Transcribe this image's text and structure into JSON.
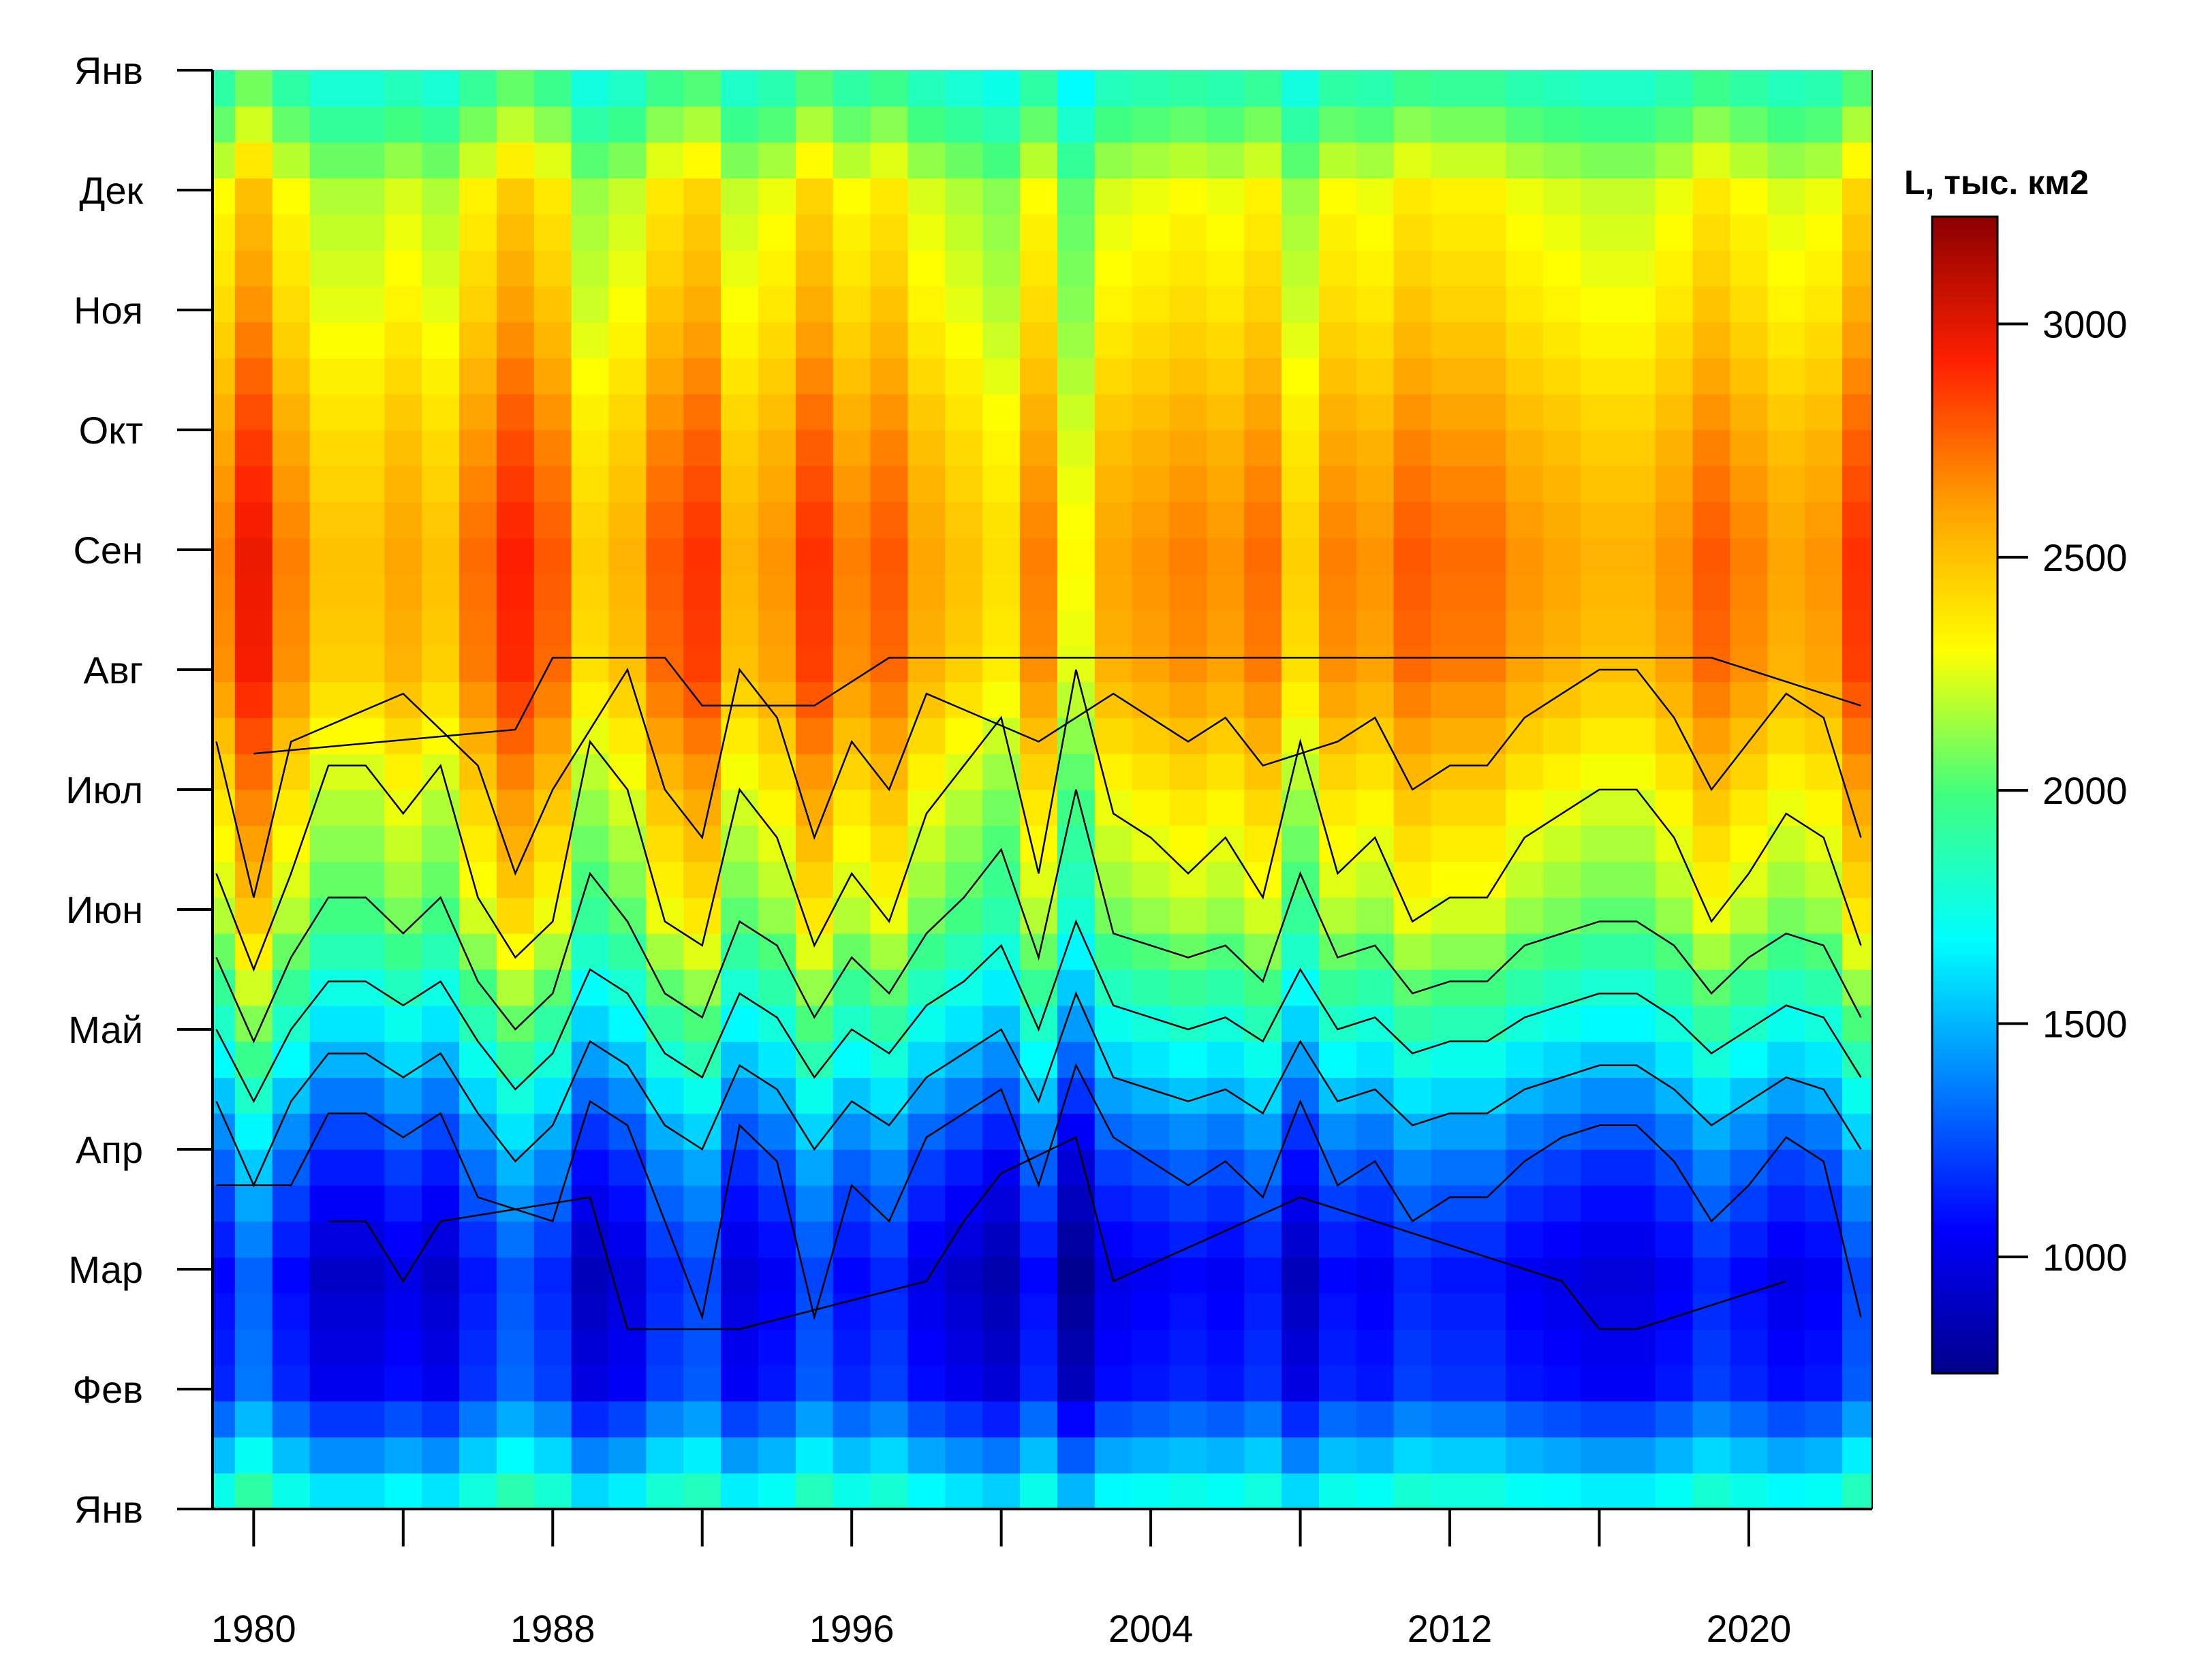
{
  "chart_data": {
    "type": "heatmap",
    "title": "",
    "xlabel": "",
    "ylabel": "",
    "x_range": [
      1978.9,
      2023.3
    ],
    "x_ticks": [
      1980,
      1984,
      1988,
      1992,
      1996,
      2000,
      2004,
      2008,
      2012,
      2016,
      2020
    ],
    "x_tick_labels": [
      {
        "year": 1980,
        "label": "1980"
      },
      {
        "year": 1988,
        "label": "1988"
      },
      {
        "year": 1996,
        "label": "1996"
      },
      {
        "year": 2004,
        "label": "2004"
      },
      {
        "year": 2012,
        "label": "2012"
      },
      {
        "year": 2020,
        "label": "2020"
      }
    ],
    "y_ticks": [
      "Янв",
      "Фев",
      "Мар",
      "Апр",
      "Май",
      "Июн",
      "Июл",
      "Авг",
      "Сен",
      "Окт",
      "Ноя",
      "Дек",
      "Янв"
    ],
    "colorbar": {
      "title": "L, тыс. км2",
      "range": [
        750,
        3230
      ],
      "ticks": [
        1000,
        1500,
        2000,
        2500,
        3000
      ],
      "tick_labels": [
        "1000",
        "1500",
        "2000",
        "2500",
        "3000"
      ],
      "colors": [
        "#00008b",
        "#0000ff",
        "#0080ff",
        "#00ffff",
        "#40ff80",
        "#ffff00",
        "#ffa000",
        "#ff2000",
        "#8b0000"
      ]
    },
    "contour_step": 250,
    "grid": false,
    "legend_position": "right",
    "seasonal_cycle": {
      "month_fraction": [
        0.0,
        0.083,
        0.167,
        0.25,
        0.333,
        0.417,
        0.5,
        0.583,
        0.667,
        0.75,
        0.833,
        0.917,
        1.0
      ],
      "typical_value": [
        1750,
        1050,
        950,
        1200,
        1650,
        2050,
        2250,
        2500,
        2550,
        2450,
        2300,
        2200,
        1750
      ]
    },
    "yearly_anomaly": [
      {
        "year": 1979,
        "value": 150
      },
      {
        "year": 1980,
        "value": 450
      },
      {
        "year": 1981,
        "value": 150
      },
      {
        "year": 1982,
        "value": -50
      },
      {
        "year": 1983,
        "value": -50
      },
      {
        "year": 1984,
        "value": 50
      },
      {
        "year": 1985,
        "value": -50
      },
      {
        "year": 1986,
        "value": 200
      },
      {
        "year": 1987,
        "value": 400
      },
      {
        "year": 1988,
        "value": 250
      },
      {
        "year": 1989,
        "value": -100
      },
      {
        "year": 1990,
        "value": 0
      },
      {
        "year": 1991,
        "value": 250
      },
      {
        "year": 1992,
        "value": 350
      },
      {
        "year": 1993,
        "value": 0
      },
      {
        "year": 1994,
        "value": 100
      },
      {
        "year": 1995,
        "value": 350
      },
      {
        "year": 1996,
        "value": 150
      },
      {
        "year": 1997,
        "value": 250
      },
      {
        "year": 1998,
        "value": 50
      },
      {
        "year": 1999,
        "value": -50
      },
      {
        "year": 2000,
        "value": -150
      },
      {
        "year": 2001,
        "value": 150
      },
      {
        "year": 2002,
        "value": -250
      },
      {
        "year": 2003,
        "value": 50
      },
      {
        "year": 2004,
        "value": 100
      },
      {
        "year": 2005,
        "value": 150
      },
      {
        "year": 2006,
        "value": 100
      },
      {
        "year": 2007,
        "value": 200
      },
      {
        "year": 2008,
        "value": -100
      },
      {
        "year": 2009,
        "value": 150
      },
      {
        "year": 2010,
        "value": 100
      },
      {
        "year": 2011,
        "value": 250
      },
      {
        "year": 2012,
        "value": 200
      },
      {
        "year": 2013,
        "value": 200
      },
      {
        "year": 2014,
        "value": 100
      },
      {
        "year": 2015,
        "value": 50
      },
      {
        "year": 2016,
        "value": 0
      },
      {
        "year": 2017,
        "value": 0
      },
      {
        "year": 2018,
        "value": 100
      },
      {
        "year": 2019,
        "value": 250
      },
      {
        "year": 2020,
        "value": 150
      },
      {
        "year": 2021,
        "value": 50
      },
      {
        "year": 2022,
        "value": 100
      },
      {
        "year": 2023,
        "value": 350
      }
    ]
  }
}
